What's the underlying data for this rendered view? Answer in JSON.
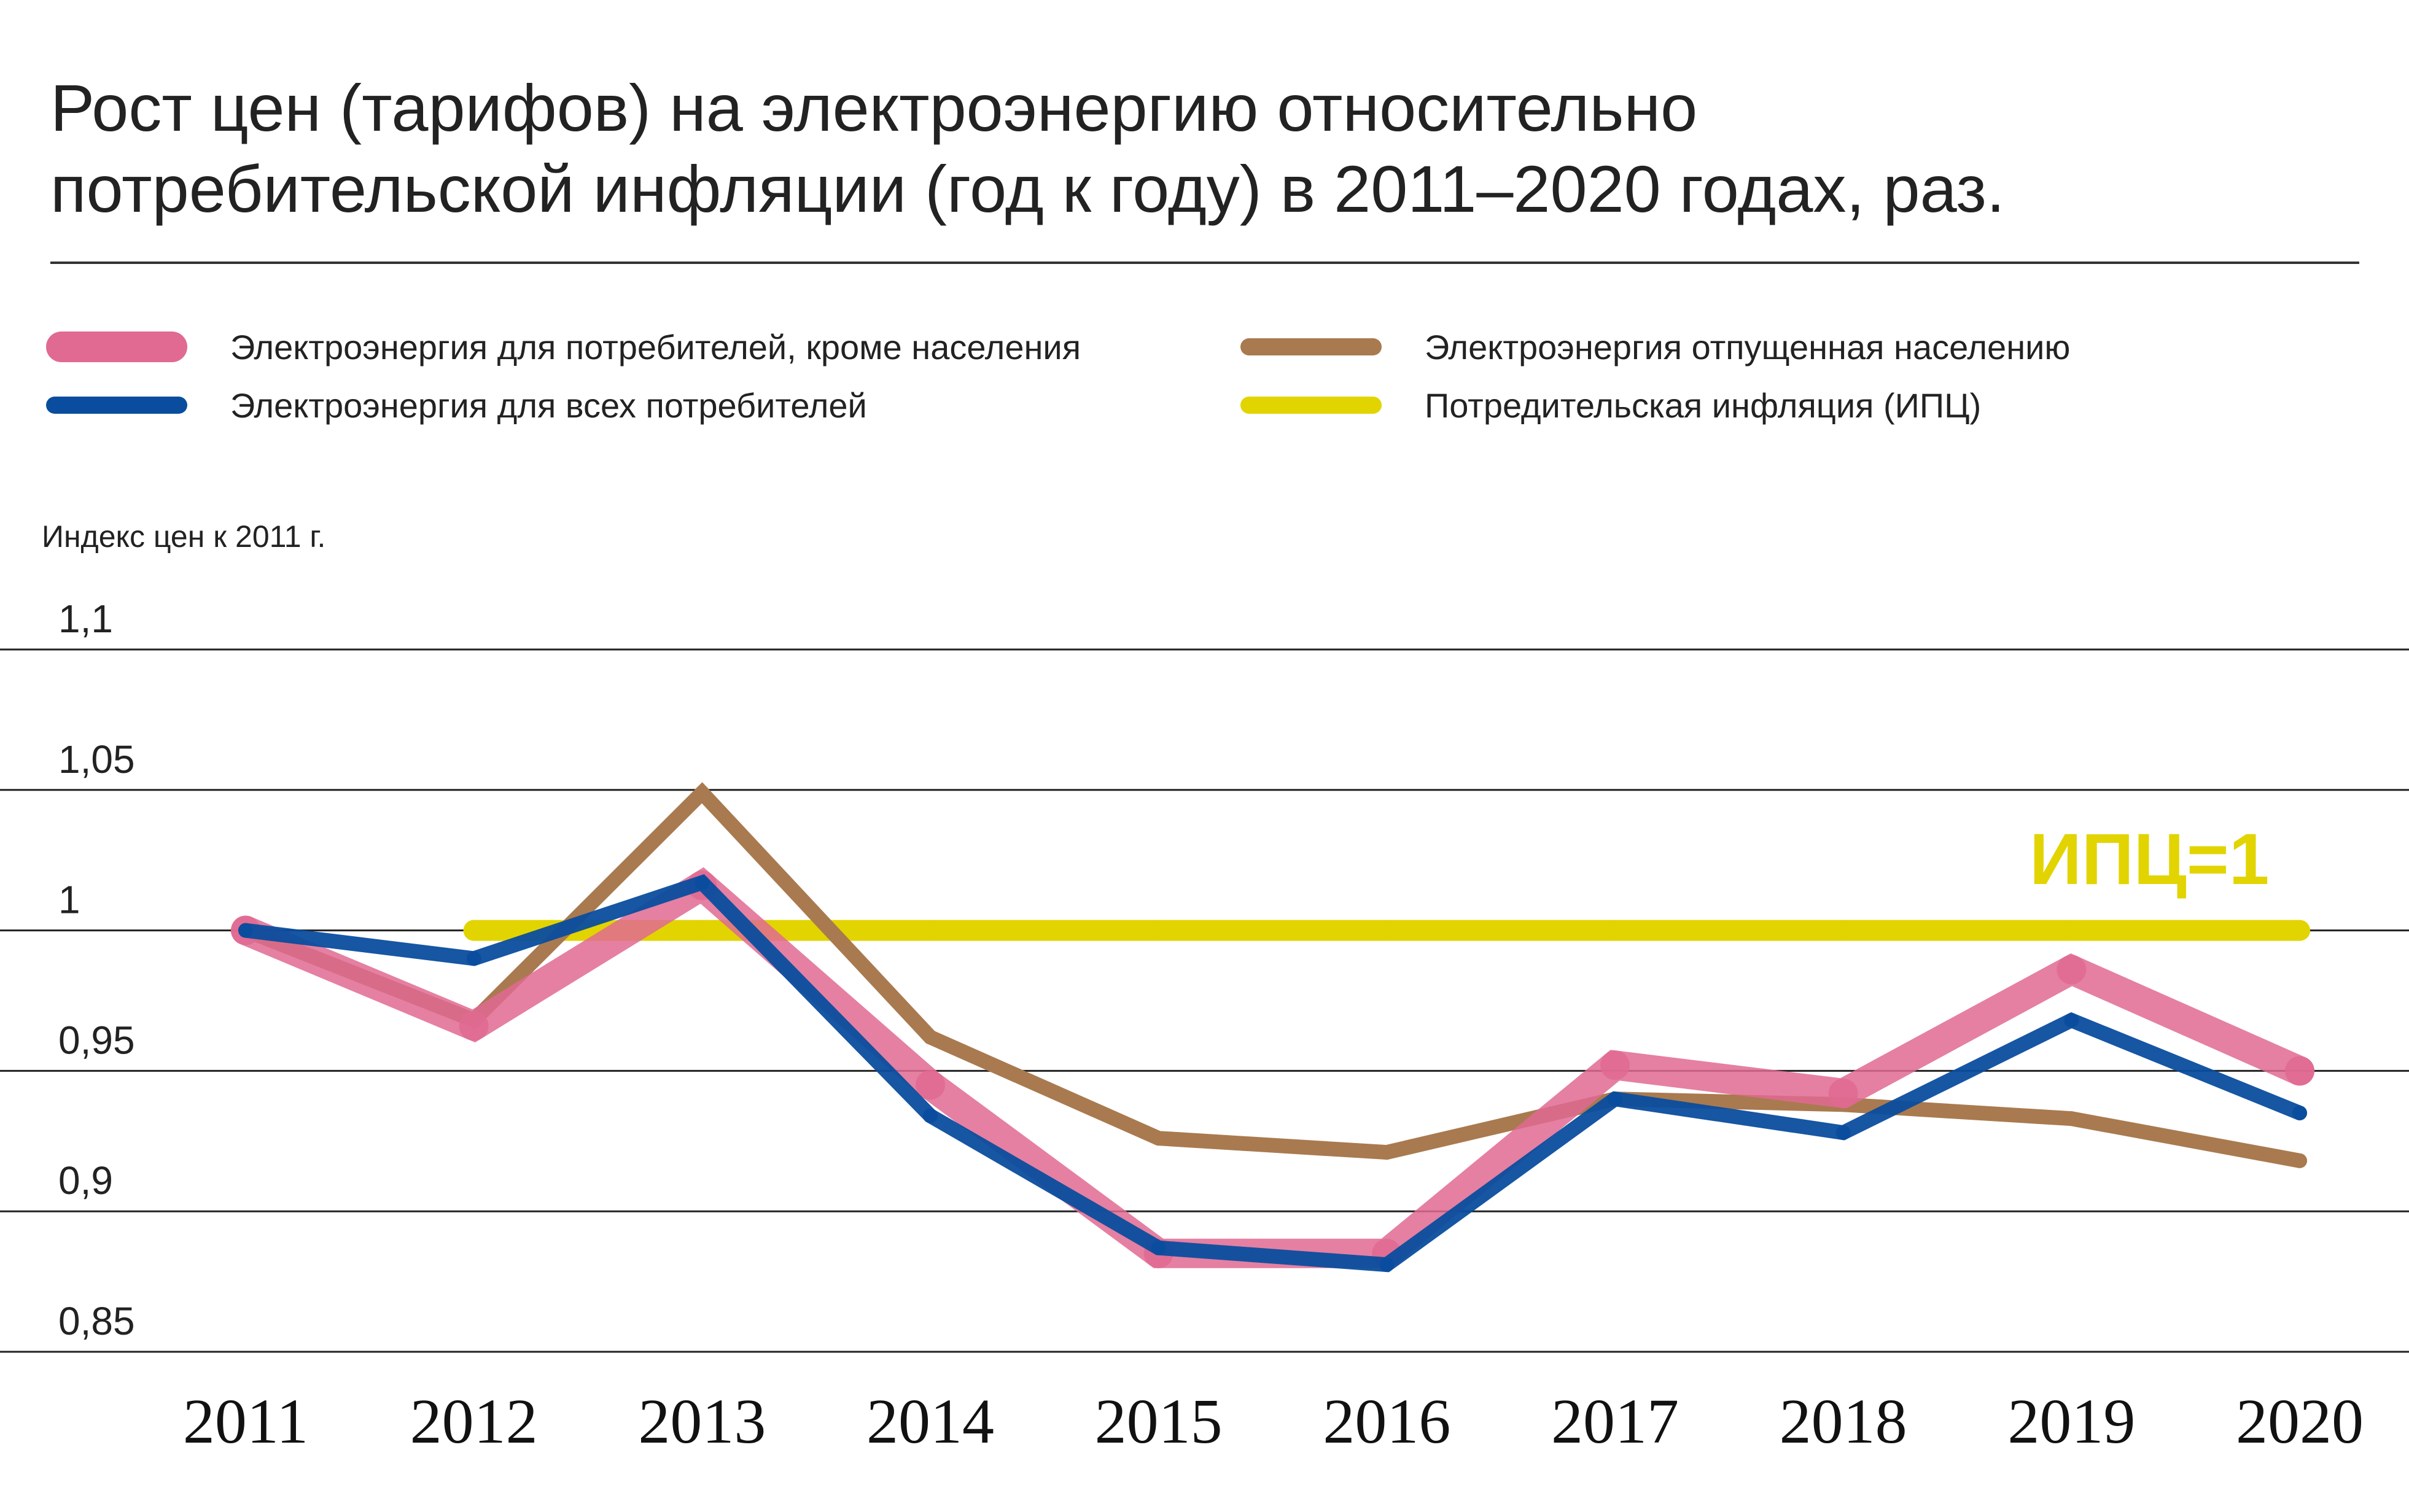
{
  "header": {
    "title_line1": "Рост цен (тарифов) на электроэнергию относительно",
    "title_line2": "потребительской инфляции (год к году) в 2011–2020 годах, раз."
  },
  "legend": [
    {
      "label": "Электроэнергия для потребителей, кроме населения",
      "color": "#e06a92"
    },
    {
      "label": "Электроэнергия для всех потребителей",
      "color": "#0a4d9e"
    },
    {
      "label": "Электроэнергия отпущенная населению",
      "color": "#a97a4f"
    },
    {
      "label": "Потредительская инфляция (ИПЦ)",
      "color": "#e2d400"
    }
  ],
  "chart_data": {
    "type": "line",
    "title": "Рост цен (тарифов) на электроэнергию относительно потребительской инфляции (год к году) в 2011–2020 годах, раз.",
    "ylabel": "Индекс цен к 2011 г.",
    "xlabel": "",
    "ylim": [
      0.85,
      1.1
    ],
    "yticks": [
      "1,1",
      "1,05",
      "1",
      "0,95",
      "0,9",
      "0,85"
    ],
    "ytick_values": [
      1.1,
      1.05,
      1.0,
      0.95,
      0.9,
      0.85
    ],
    "x": [
      "2011",
      "2012",
      "2013",
      "2014",
      "2015",
      "2016",
      "2017",
      "2018",
      "2019",
      "2020"
    ],
    "grid": true,
    "annotation": {
      "text": "ИПЦ=1",
      "color": "#e2d400"
    },
    "series": [
      {
        "name": "Потредительская инфляция (ИПЦ)",
        "color": "#e2d400",
        "values": [
          null,
          1.0,
          1.0,
          1.0,
          1.0,
          1.0,
          1.0,
          1.0,
          1.0,
          1.0
        ]
      },
      {
        "name": "Электроэнергия отпущенная населению",
        "color": "#a97a4f",
        "values": [
          1.0,
          0.968,
          1.049,
          0.962,
          0.926,
          0.921,
          0.94,
          0.938,
          0.933,
          0.918
        ]
      },
      {
        "name": "Электроэнергия для потребителей, кроме населения",
        "color": "#e06a92",
        "values": [
          1.0,
          0.966,
          1.016,
          0.945,
          0.885,
          0.885,
          0.952,
          0.942,
          0.986,
          0.95
        ]
      },
      {
        "name": "Электроэнергия для всех потребителей",
        "color": "#0a4d9e",
        "values": [
          1.0,
          0.99,
          1.017,
          0.934,
          0.887,
          0.881,
          0.94,
          0.928,
          0.968,
          0.935
        ]
      }
    ]
  }
}
